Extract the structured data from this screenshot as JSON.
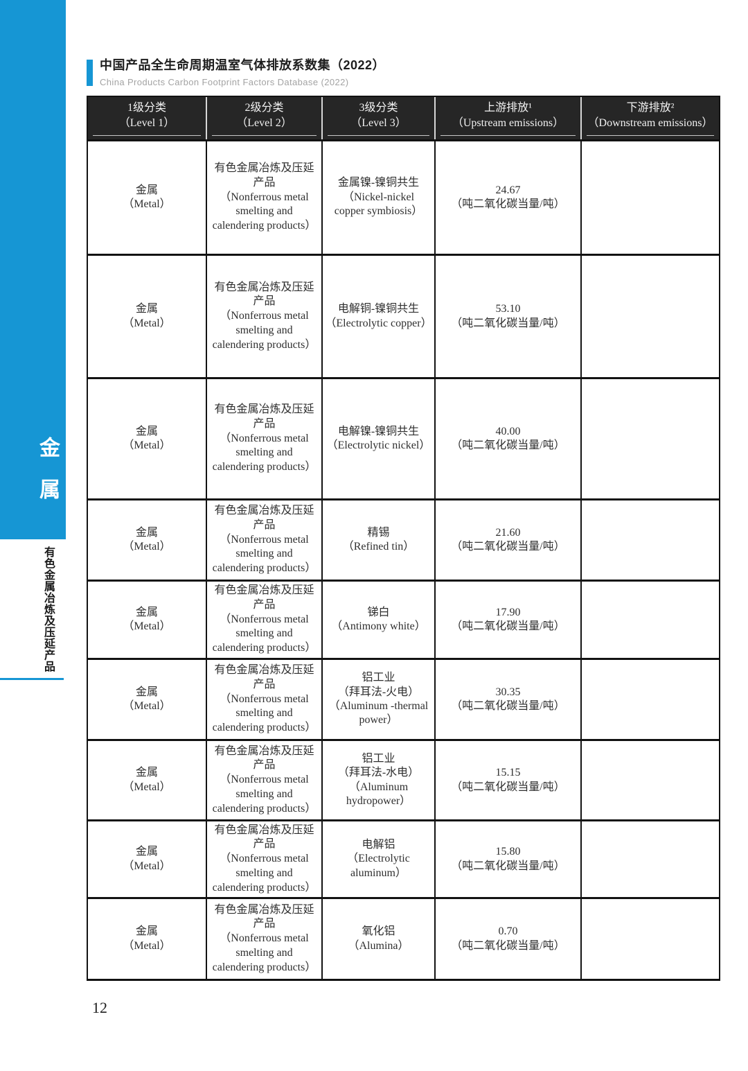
{
  "page": {
    "title_zh": "中国产品全生命周期温室气体排放系数集（2022）",
    "title_en": "China Products Carbon Footprint Factors Database (2022)",
    "page_number": "12"
  },
  "sidebar": {
    "tab_label": "金属",
    "section_label": "有色金属冶炼及压延产品",
    "accent_color": "#1696d4"
  },
  "table": {
    "header_bg_color": "#262626",
    "headers": [
      {
        "zh": "1级分类",
        "en": "（Level 1）"
      },
      {
        "zh": "2级分类",
        "en": "（Level 2）"
      },
      {
        "zh": "3级分类",
        "en": "（Level 3）"
      },
      {
        "zh": "上游排放¹",
        "en": "（Upstream emissions）"
      },
      {
        "zh": "下游排放²",
        "en": "（Downstream emissions）"
      }
    ],
    "rows": [
      {
        "l1": [
          "金属",
          "（Metal）"
        ],
        "l2": [
          "有色金属冶炼及压延",
          "产品",
          "（Nonferrous metal",
          "smelting and",
          "calendering products）"
        ],
        "l3": [
          "金属镍-镍铜共生",
          "（Nickel-nickel",
          "copper symbiosis）"
        ],
        "upstream": [
          "24.67",
          "（吨二氧化碳当量/吨）"
        ],
        "downstream": ""
      },
      {
        "l1": [
          "金属",
          "（Metal）"
        ],
        "l2": [
          "有色金属冶炼及压延",
          "产品",
          "（Nonferrous metal",
          "smelting and",
          "calendering products）"
        ],
        "l3": [
          "电解铜-镍铜共生",
          "（Electrolytic copper）"
        ],
        "upstream": [
          "53.10",
          "（吨二氧化碳当量/吨）"
        ],
        "downstream": ""
      },
      {
        "l1": [
          "金属",
          "（Metal）"
        ],
        "l2": [
          "有色金属冶炼及压延",
          "产品",
          "（Nonferrous metal",
          "smelting and",
          "calendering products）"
        ],
        "l3": [
          "电解镍-镍铜共生",
          "（Electrolytic nickel）"
        ],
        "upstream": [
          "40.00",
          "（吨二氧化碳当量/吨）"
        ],
        "downstream": ""
      },
      {
        "l1": [
          "金属",
          "（Metal）"
        ],
        "l2": [
          "有色金属冶炼及压延",
          "产品",
          "（Nonferrous metal",
          "smelting and",
          "calendering products）"
        ],
        "l3": [
          "精锡",
          "（Refined tin）"
        ],
        "upstream": [
          "21.60",
          "（吨二氧化碳当量/吨）"
        ],
        "downstream": ""
      },
      {
        "l1": [
          "金属",
          "（Metal）"
        ],
        "l2": [
          "有色金属冶炼及压延",
          "产品",
          "（Nonferrous metal",
          "smelting and",
          "calendering products）"
        ],
        "l3": [
          "锑白",
          "（Antimony white）"
        ],
        "upstream": [
          "17.90",
          "（吨二氧化碳当量/吨）"
        ],
        "downstream": ""
      },
      {
        "l1": [
          "金属",
          "（Metal）"
        ],
        "l2": [
          "有色金属冶炼及压延",
          "产品",
          "（Nonferrous metal",
          "smelting and",
          "calendering products）"
        ],
        "l3": [
          "铝工业",
          "（拜耳法-火电）",
          "（Aluminum -thermal",
          "power）"
        ],
        "upstream": [
          "30.35",
          "（吨二氧化碳当量/吨）"
        ],
        "downstream": ""
      },
      {
        "l1": [
          "金属",
          "（Metal）"
        ],
        "l2": [
          "有色金属冶炼及压延",
          "产品",
          "（Nonferrous metal",
          "smelting and",
          "calendering products）"
        ],
        "l3": [
          "铝工业",
          "（拜耳法-水电）",
          "（Aluminum",
          "hydropower）"
        ],
        "upstream": [
          "15.15",
          "（吨二氧化碳当量/吨）"
        ],
        "downstream": ""
      },
      {
        "l1": [
          "金属",
          "（Metal）"
        ],
        "l2": [
          "有色金属冶炼及压延",
          "产品",
          "（Nonferrous metal",
          "smelting and",
          "calendering products）"
        ],
        "l3": [
          "电解铝",
          "（Electrolytic",
          "aluminum）"
        ],
        "upstream": [
          "15.80",
          "（吨二氧化碳当量/吨）"
        ],
        "downstream": ""
      },
      {
        "l1": [
          "金属",
          "（Metal）"
        ],
        "l2": [
          "有色金属冶炼及压延",
          "产品",
          "（Nonferrous metal",
          "smelting and",
          "calendering products）"
        ],
        "l3": [
          "氧化铝",
          "（Alumina）"
        ],
        "upstream": [
          "0.70",
          "（吨二氧化碳当量/吨）"
        ],
        "downstream": ""
      }
    ]
  }
}
